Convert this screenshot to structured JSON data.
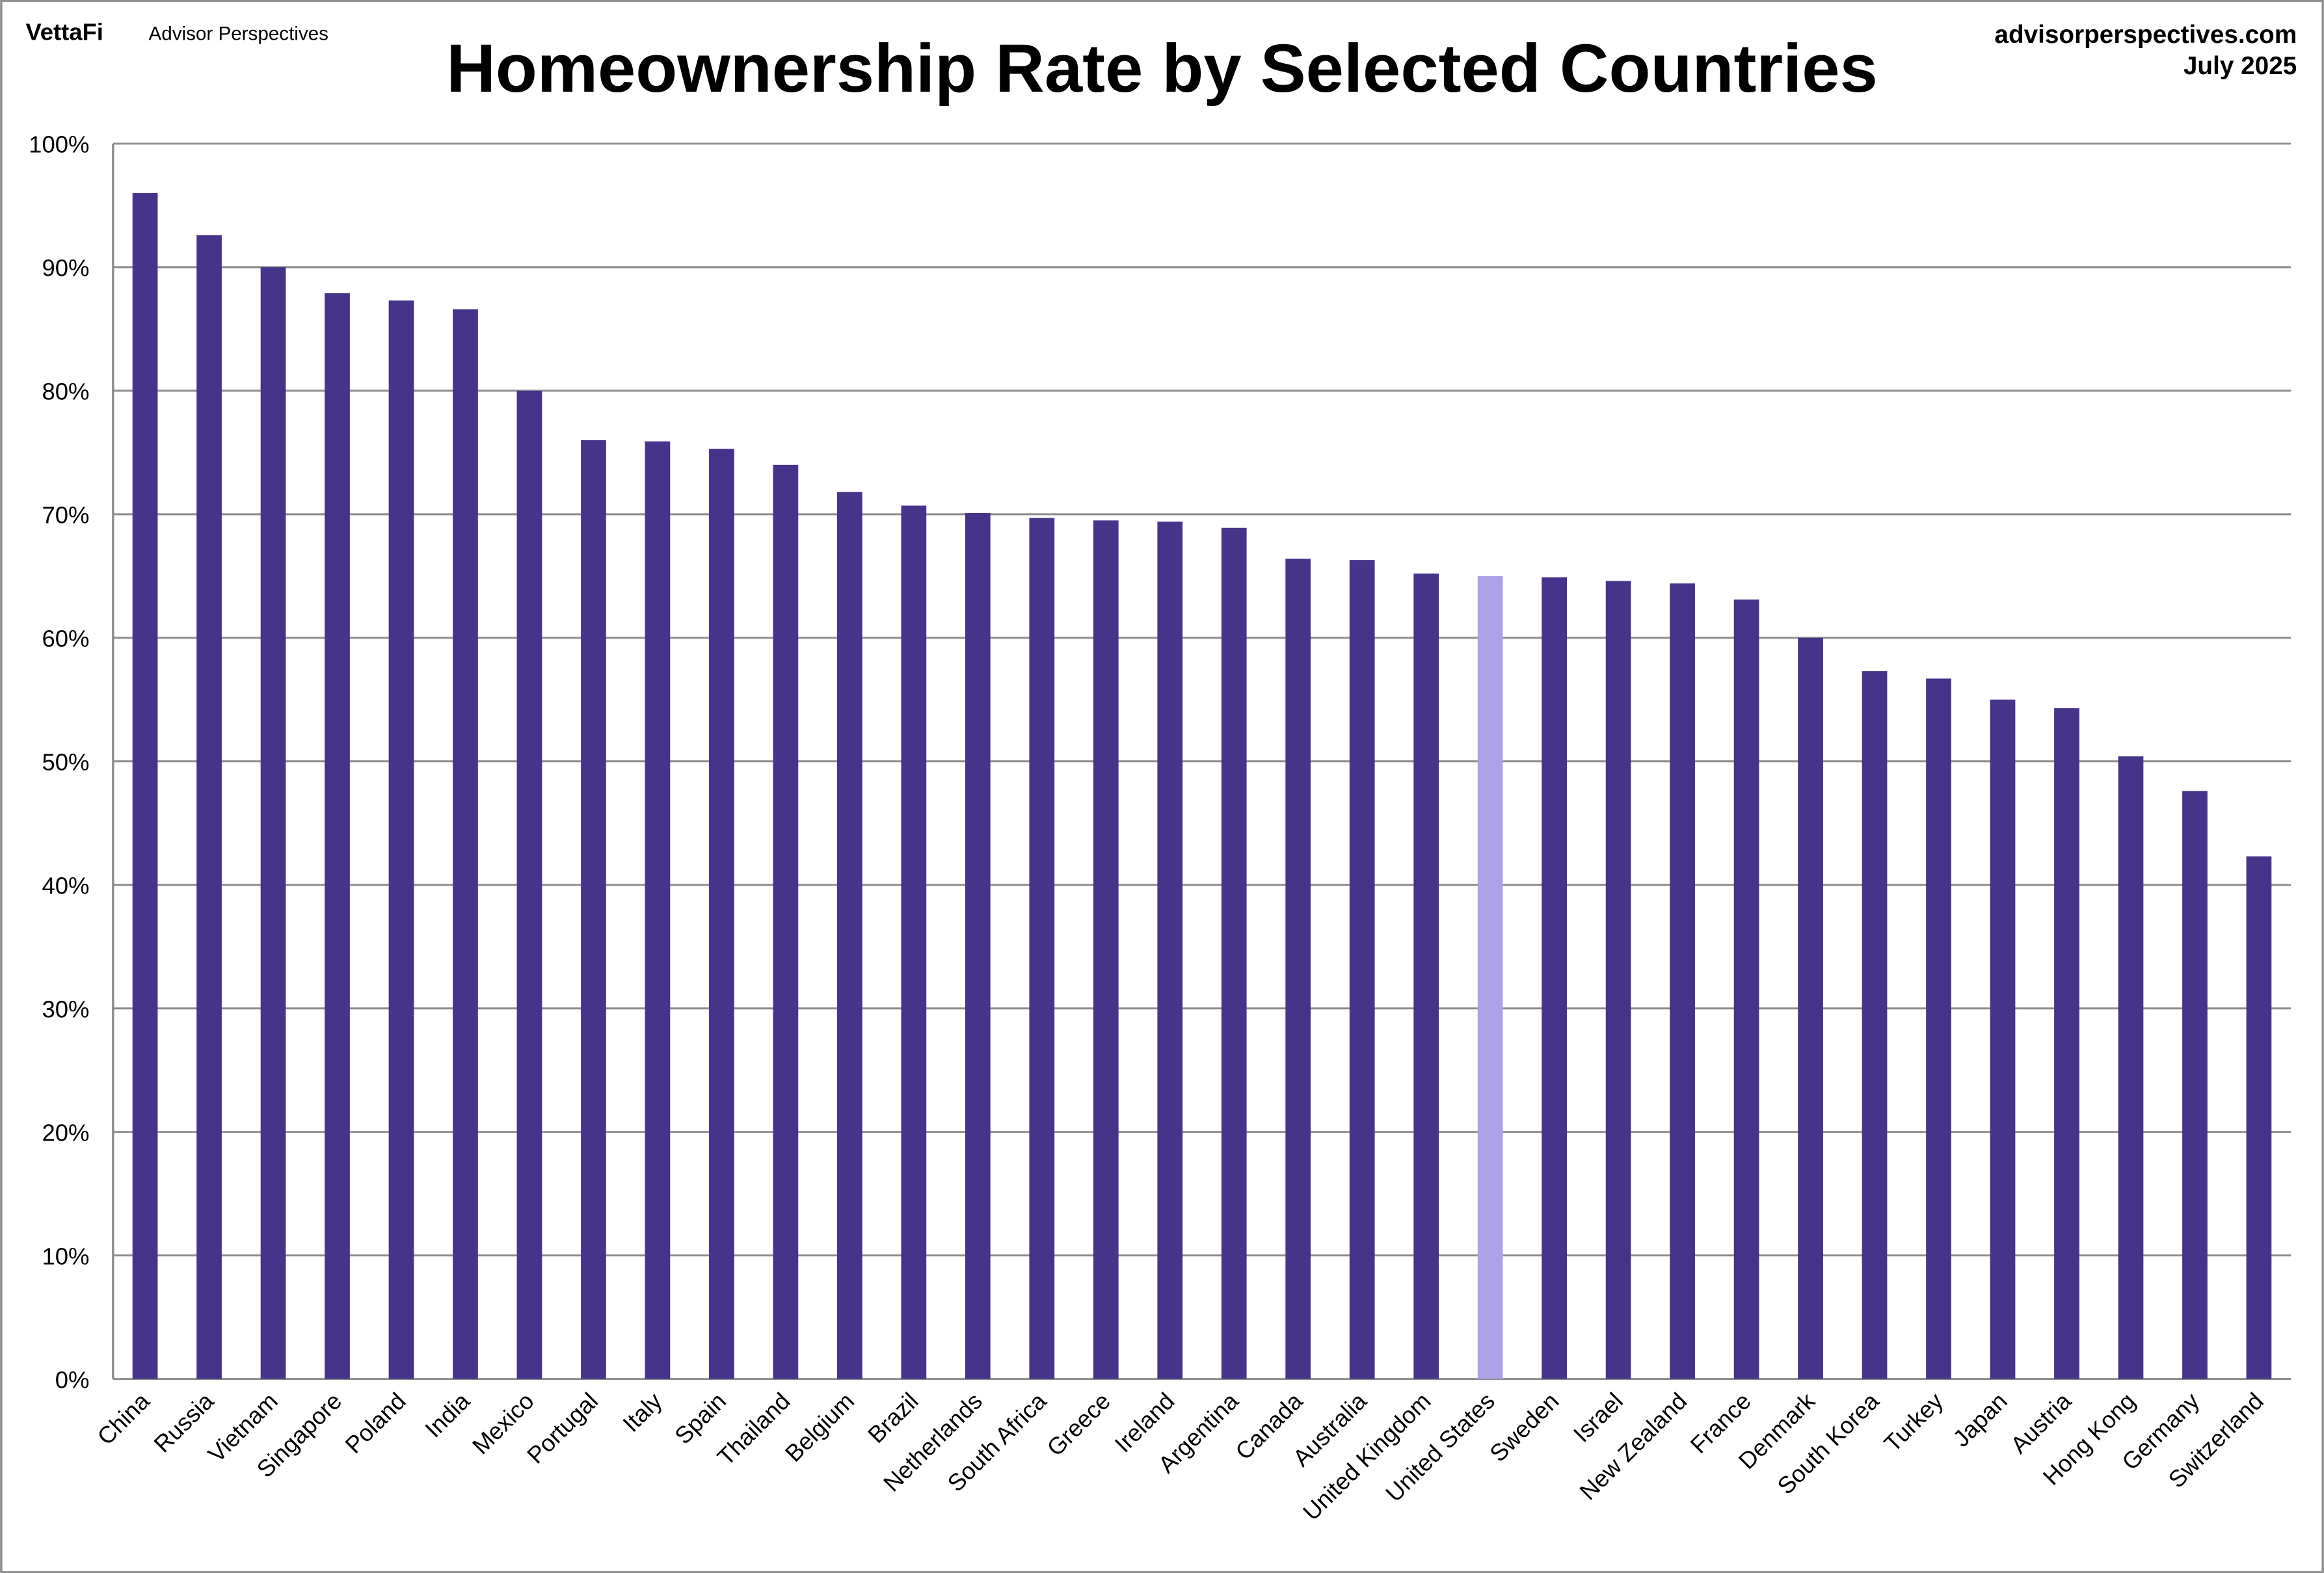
{
  "header": {
    "logo_brand": "VettaFi",
    "logo_sub": "Advisor Perspectives",
    "source": "advisorperspectives.com",
    "date": "July 2025"
  },
  "colors": {
    "bar": "#46348a",
    "highlight": "#ada2e6",
    "grid": "#8c8c8c"
  },
  "chart_data": {
    "type": "bar",
    "title": "Homeownership Rate by Selected Countries",
    "xlabel": "",
    "ylabel": "",
    "ylim": [
      0,
      100
    ],
    "yticks": [
      "0%",
      "10%",
      "20%",
      "30%",
      "40%",
      "50%",
      "60%",
      "70%",
      "80%",
      "90%",
      "100%"
    ],
    "grid": true,
    "highlight": "United States",
    "categories": [
      "China",
      "Russia",
      "Vietnam",
      "Singapore",
      "Poland",
      "India",
      "Mexico",
      "Portugal",
      "Italy",
      "Spain",
      "Thailand",
      "Belgium",
      "Brazil",
      "Netherlands",
      "South Africa",
      "Greece",
      "Ireland",
      "Argentina",
      "Canada",
      "Australia",
      "United Kingdom",
      "United States",
      "Sweden",
      "Israel",
      "New Zealand",
      "France",
      "Denmark",
      "South Korea",
      "Turkey",
      "Japan",
      "Austria",
      "Hong Kong",
      "Germany",
      "Switzerland"
    ],
    "values": [
      96.0,
      92.6,
      90.0,
      87.9,
      87.3,
      86.6,
      80.0,
      76.0,
      75.9,
      75.3,
      74.0,
      71.8,
      70.7,
      70.1,
      69.7,
      69.5,
      69.4,
      68.9,
      66.4,
      66.3,
      65.2,
      65.0,
      64.9,
      64.6,
      64.4,
      63.1,
      60.0,
      57.3,
      56.7,
      55.0,
      54.3,
      50.4,
      47.6,
      42.3
    ]
  }
}
